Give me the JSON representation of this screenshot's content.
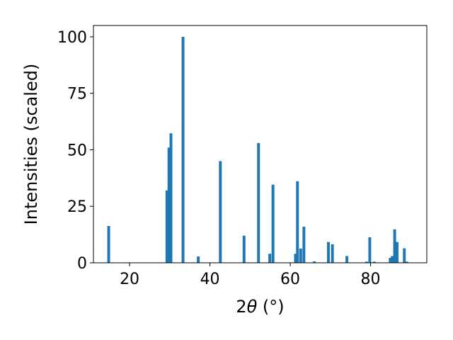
{
  "chart_data": {
    "type": "bar",
    "xlabel_prefix": "2",
    "xlabel_symbol": "θ",
    "xlabel_suffix": " (°)",
    "ylabel": "Intensities (scaled)",
    "xlim": [
      11,
      94
    ],
    "ylim": [
      0,
      105
    ],
    "x_ticks": [
      20,
      40,
      60,
      80
    ],
    "y_ticks": [
      0,
      25,
      50,
      75,
      100
    ],
    "grid": false,
    "bar_color": "#1f77b4",
    "bar_width": 0.7,
    "bars": [
      {
        "x": 14.8,
        "y": 16.3
      },
      {
        "x": 29.3,
        "y": 32.0
      },
      {
        "x": 29.8,
        "y": 51.0
      },
      {
        "x": 30.3,
        "y": 57.3
      },
      {
        "x": 33.3,
        "y": 100.0
      },
      {
        "x": 37.1,
        "y": 2.8
      },
      {
        "x": 42.6,
        "y": 45.0
      },
      {
        "x": 48.5,
        "y": 12.0
      },
      {
        "x": 52.1,
        "y": 53.0
      },
      {
        "x": 54.9,
        "y": 4.0
      },
      {
        "x": 55.7,
        "y": 34.6
      },
      {
        "x": 61.3,
        "y": 4.0
      },
      {
        "x": 61.8,
        "y": 36.1
      },
      {
        "x": 62.6,
        "y": 6.3
      },
      {
        "x": 63.4,
        "y": 16.0
      },
      {
        "x": 66.0,
        "y": 0.6
      },
      {
        "x": 69.5,
        "y": 9.2
      },
      {
        "x": 70.5,
        "y": 8.2
      },
      {
        "x": 74.1,
        "y": 3.0
      },
      {
        "x": 79.0,
        "y": 0.5
      },
      {
        "x": 79.8,
        "y": 11.3
      },
      {
        "x": 80.9,
        "y": 0.5
      },
      {
        "x": 84.9,
        "y": 2.2
      },
      {
        "x": 85.4,
        "y": 3.0
      },
      {
        "x": 86.0,
        "y": 14.8
      },
      {
        "x": 86.6,
        "y": 9.2
      },
      {
        "x": 88.4,
        "y": 6.4
      },
      {
        "x": 89.0,
        "y": 0.5
      }
    ]
  }
}
